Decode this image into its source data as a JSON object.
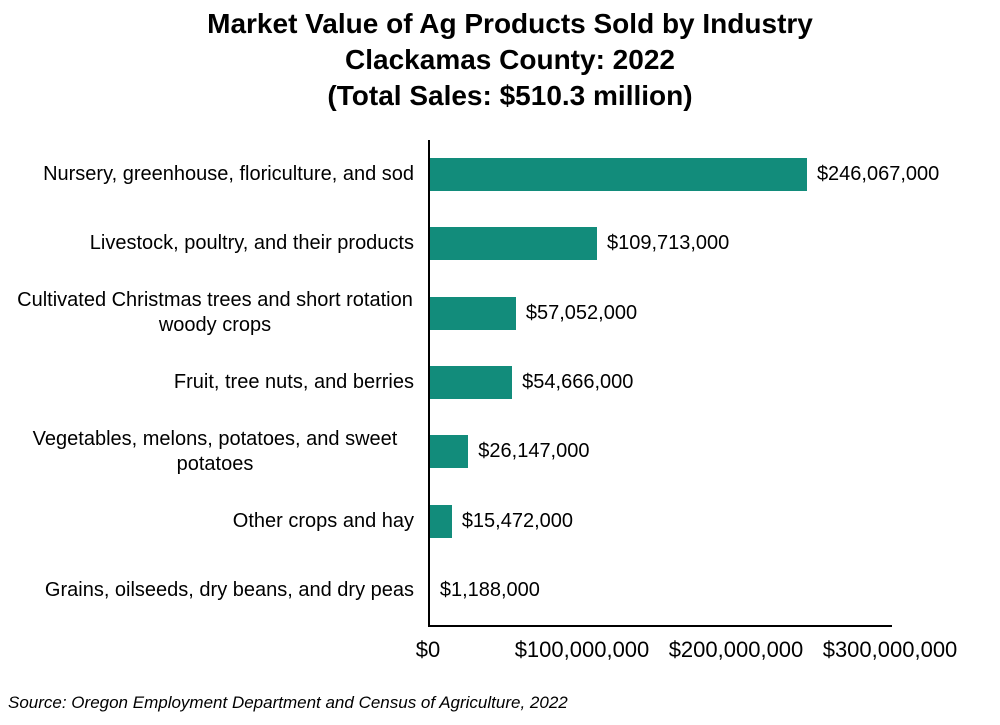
{
  "title": {
    "line1": "Market Value of Ag Products Sold by Industry",
    "line2": "Clackamas County: 2022",
    "line3": "(Total Sales: $510.3 million)"
  },
  "chart_data": {
    "type": "bar",
    "orientation": "horizontal",
    "title": "Market Value of Ag Products Sold by Industry",
    "subtitle": "Clackamas County: 2022",
    "total_note": "(Total Sales: $510.3 million)",
    "categories": [
      "Nursery, greenhouse, floriculture, and sod",
      "Livestock, poultry, and their products",
      "Cultivated Christmas trees and short rotation woody crops",
      "Fruit, tree nuts, and berries",
      "Vegetables, melons, potatoes, and sweet potatoes",
      "Other crops and hay",
      "Grains, oilseeds, dry beans, and dry peas"
    ],
    "values": [
      246067000,
      109713000,
      57052000,
      54666000,
      26147000,
      15472000,
      1188000
    ],
    "value_labels": [
      "$246,067,000",
      "$109,713,000",
      "$57,052,000",
      "$54,666,000",
      "$26,147,000",
      "$15,472,000",
      "$1,188,000"
    ],
    "xlim": [
      0,
      300000000
    ],
    "x_tick_values": [
      0,
      100000000,
      200000000,
      300000000
    ],
    "x_tick_labels": [
      "$0",
      "$100,000,000",
      "$200,000,000",
      "$300,000,000"
    ],
    "bar_color": "#128C7B",
    "axis_color": "#000000",
    "grid": false,
    "legend": false,
    "source": "Source: Oregon Employment Department and Census of Agriculture, 2022"
  }
}
